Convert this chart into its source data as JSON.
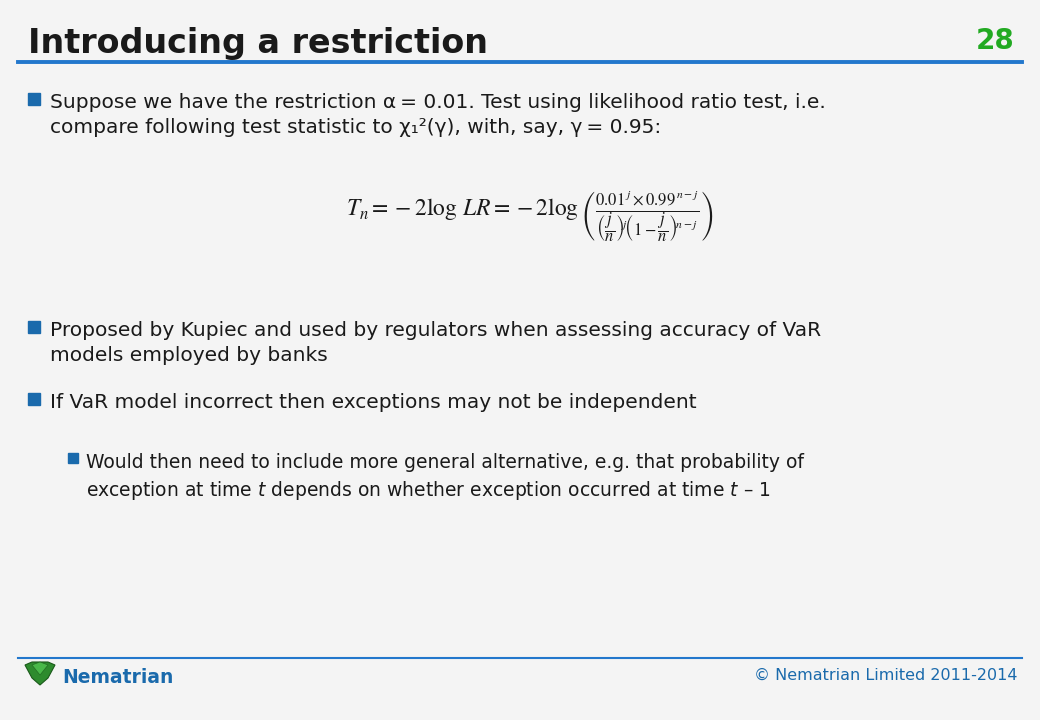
{
  "title": "Introducing a restriction",
  "slide_number": "28",
  "title_color": "#1a1a1a",
  "title_fontsize": 24,
  "slide_number_color": "#22aa22",
  "line_color": "#2277cc",
  "background_color": "#f4f4f4",
  "bullet_color": "#1a6aac",
  "text_color": "#1a1a1a",
  "footer_left": "Nematrian",
  "footer_right": "© Nematrian Limited 2011-2014",
  "footer_color": "#1a6aac",
  "bullet1_line1": "Suppose we have the restriction α = 0.01. Test using likelihood ratio test, i.e.",
  "bullet1_line2": "compare following test statistic to χ₁²(γ), with, say, γ = 0.95:",
  "bullet2_line1": "Proposed by Kupiec and used by regulators when assessing accuracy of VaR",
  "bullet2_line2": "models employed by banks",
  "bullet3_line1": "If VaR model incorrect then exceptions may not be independent",
  "sub_line1": "Would then need to include more general alternative, e.g. that probability of",
  "sub_line2a": "exception at time ",
  "sub_line2b": "t",
  "sub_line2c": " depends on whether exception occurred at time ",
  "sub_line2d": "t",
  "sub_line2e": " – 1"
}
